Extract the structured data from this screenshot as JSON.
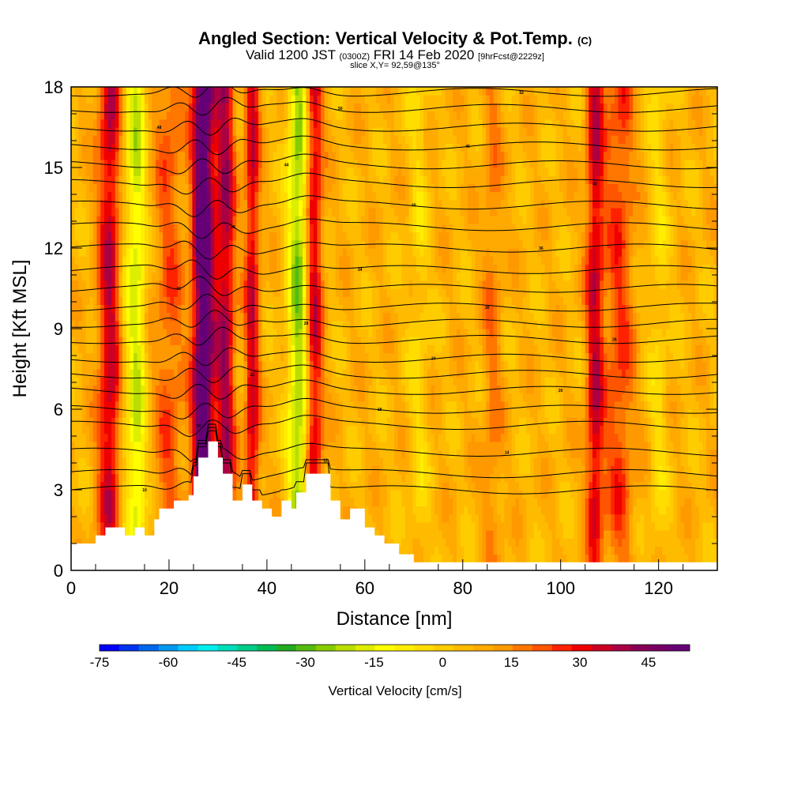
{
  "header": {
    "title_main": "Angled Section: Vertical Velocity & Pot.Temp.",
    "title_mark": "(C)",
    "valid_prefix": "Valid 1200 JST",
    "valid_utc": "(0300Z)",
    "valid_date": "FRI 14 Feb 2020",
    "forecast": "[9hrFcst@2229z]",
    "slice": "slice X,Y= 92,59@135°"
  },
  "chart_data": {
    "type": "heatmap",
    "xlabel": "Distance [nm]",
    "ylabel": "Height [Kft MSL]",
    "xlim": [
      0,
      132
    ],
    "ylim": [
      0,
      18
    ],
    "x_ticks": [
      "0",
      "20",
      "40",
      "60",
      "80",
      "100",
      "120"
    ],
    "y_ticks": [
      "0",
      "3",
      "6",
      "9",
      "12",
      "15",
      "18"
    ],
    "x_tick_values": [
      0,
      20,
      40,
      60,
      80,
      100,
      120
    ],
    "y_tick_values": [
      0,
      3,
      6,
      9,
      12,
      15,
      18
    ],
    "colorbar": {
      "title": "Vertical Velocity [cm/s]",
      "range": [
        -75,
        54
      ],
      "tick_labels": [
        "-75",
        "-60",
        "-45",
        "-30",
        "-15",
        "0",
        "15",
        "30",
        "45"
      ],
      "tick_values": [
        -75,
        -60,
        -45,
        -30,
        -15,
        0,
        15,
        30,
        45
      ],
      "colors": [
        "#0000ff",
        "#0033ee",
        "#0066ee",
        "#0099ee",
        "#00ccff",
        "#00eeee",
        "#00ddbb",
        "#00cc88",
        "#00bb55",
        "#22aa22",
        "#55bb11",
        "#88cc00",
        "#bbdd00",
        "#ddee00",
        "#ffff00",
        "#ffee00",
        "#ffdd00",
        "#ffcc00",
        "#ffbb00",
        "#ffaa00",
        "#ff9900",
        "#ff7700",
        "#ff5500",
        "#ff2200",
        "#ee0000",
        "#cc0022",
        "#aa0044",
        "#880055",
        "#770066",
        "#660077"
      ]
    },
    "features": [
      {
        "x": 8,
        "width": 2.5,
        "w": 30
      },
      {
        "x": 11,
        "width": 2.0,
        "w": -10
      },
      {
        "x": 13.5,
        "width": 1.8,
        "w": -22
      },
      {
        "x": 20,
        "width": 3.0,
        "w": 15
      },
      {
        "x": 27,
        "width": 2.2,
        "w": 52
      },
      {
        "x": 31.5,
        "width": 2.0,
        "w": 32
      },
      {
        "x": 37,
        "width": 1.5,
        "w": 28
      },
      {
        "x": 46.5,
        "width": 2.2,
        "w": -32
      },
      {
        "x": 49.5,
        "width": 1.8,
        "w": 30
      },
      {
        "x": 71,
        "width": 2.0,
        "w": -8
      },
      {
        "x": 86,
        "width": 2.0,
        "w": 10
      },
      {
        "x": 107,
        "width": 1.8,
        "w": 28
      },
      {
        "x": 112,
        "width": 3.0,
        "w": 18
      },
      {
        "x": 120,
        "width": 2.0,
        "w": -8
      }
    ],
    "terrain": [
      [
        0,
        1.0
      ],
      [
        5,
        1.0
      ],
      [
        5,
        1.3
      ],
      [
        7,
        1.3
      ],
      [
        7,
        1.6
      ],
      [
        11,
        1.6
      ],
      [
        11,
        1.3
      ],
      [
        13,
        1.3
      ],
      [
        13,
        1.6
      ],
      [
        15,
        1.6
      ],
      [
        15,
        1.3
      ],
      [
        17,
        1.3
      ],
      [
        17,
        1.9
      ],
      [
        18,
        1.9
      ],
      [
        18,
        2.3
      ],
      [
        21,
        2.3
      ],
      [
        21,
        2.6
      ],
      [
        24,
        2.6
      ],
      [
        24,
        2.8
      ],
      [
        25,
        2.8
      ],
      [
        25,
        3.5
      ],
      [
        26,
        3.5
      ],
      [
        26,
        4.2
      ],
      [
        28,
        4.2
      ],
      [
        28,
        4.8
      ],
      [
        30,
        4.8
      ],
      [
        30,
        4.2
      ],
      [
        31,
        4.2
      ],
      [
        31,
        3.6
      ],
      [
        33,
        3.6
      ],
      [
        33,
        2.6
      ],
      [
        35,
        2.6
      ],
      [
        35,
        3.2
      ],
      [
        37,
        3.2
      ],
      [
        37,
        2.6
      ],
      [
        39,
        2.6
      ],
      [
        39,
        2.3
      ],
      [
        41,
        2.3
      ],
      [
        41,
        2.0
      ],
      [
        43,
        2.0
      ],
      [
        43,
        2.6
      ],
      [
        45,
        2.6
      ],
      [
        45,
        2.3
      ],
      [
        46,
        2.3
      ],
      [
        46,
        2.9
      ],
      [
        48,
        2.9
      ],
      [
        48,
        3.6
      ],
      [
        53,
        3.6
      ],
      [
        53,
        2.6
      ],
      [
        55,
        2.6
      ],
      [
        55,
        1.9
      ],
      [
        57,
        1.9
      ],
      [
        57,
        2.3
      ],
      [
        60,
        2.3
      ],
      [
        60,
        1.6
      ],
      [
        62,
        1.6
      ],
      [
        62,
        1.3
      ],
      [
        64,
        1.3
      ],
      [
        64,
        1.0
      ],
      [
        67,
        1.0
      ],
      [
        67,
        0.6
      ],
      [
        70,
        0.6
      ],
      [
        70,
        0.3
      ],
      [
        132,
        0.3
      ]
    ],
    "theta_contours": [
      {
        "base": 3.0,
        "label": "10"
      },
      {
        "base": 3.6,
        "label": "12"
      },
      {
        "base": 4.4,
        "label": "14"
      },
      {
        "base": 5.4,
        "label": "16"
      },
      {
        "base": 6.0,
        "label": "18"
      },
      {
        "base": 6.7,
        "label": "20"
      },
      {
        "base": 7.3,
        "label": "22"
      },
      {
        "base": 7.9,
        "label": "24"
      },
      {
        "base": 8.6,
        "label": "26"
      },
      {
        "base": 9.2,
        "label": "28"
      },
      {
        "base": 9.8,
        "label": "30"
      },
      {
        "base": 10.5,
        "label": "32"
      },
      {
        "base": 11.2,
        "label": "34"
      },
      {
        "base": 12.0,
        "label": "36"
      },
      {
        "base": 12.8,
        "label": "38"
      },
      {
        "base": 13.6,
        "label": "40"
      },
      {
        "base": 14.4,
        "label": "42"
      },
      {
        "base": 15.1,
        "label": "44"
      },
      {
        "base": 15.8,
        "label": "46"
      },
      {
        "base": 16.5,
        "label": "48"
      },
      {
        "base": 17.2,
        "label": "50"
      },
      {
        "base": 17.8,
        "label": "52"
      }
    ]
  }
}
